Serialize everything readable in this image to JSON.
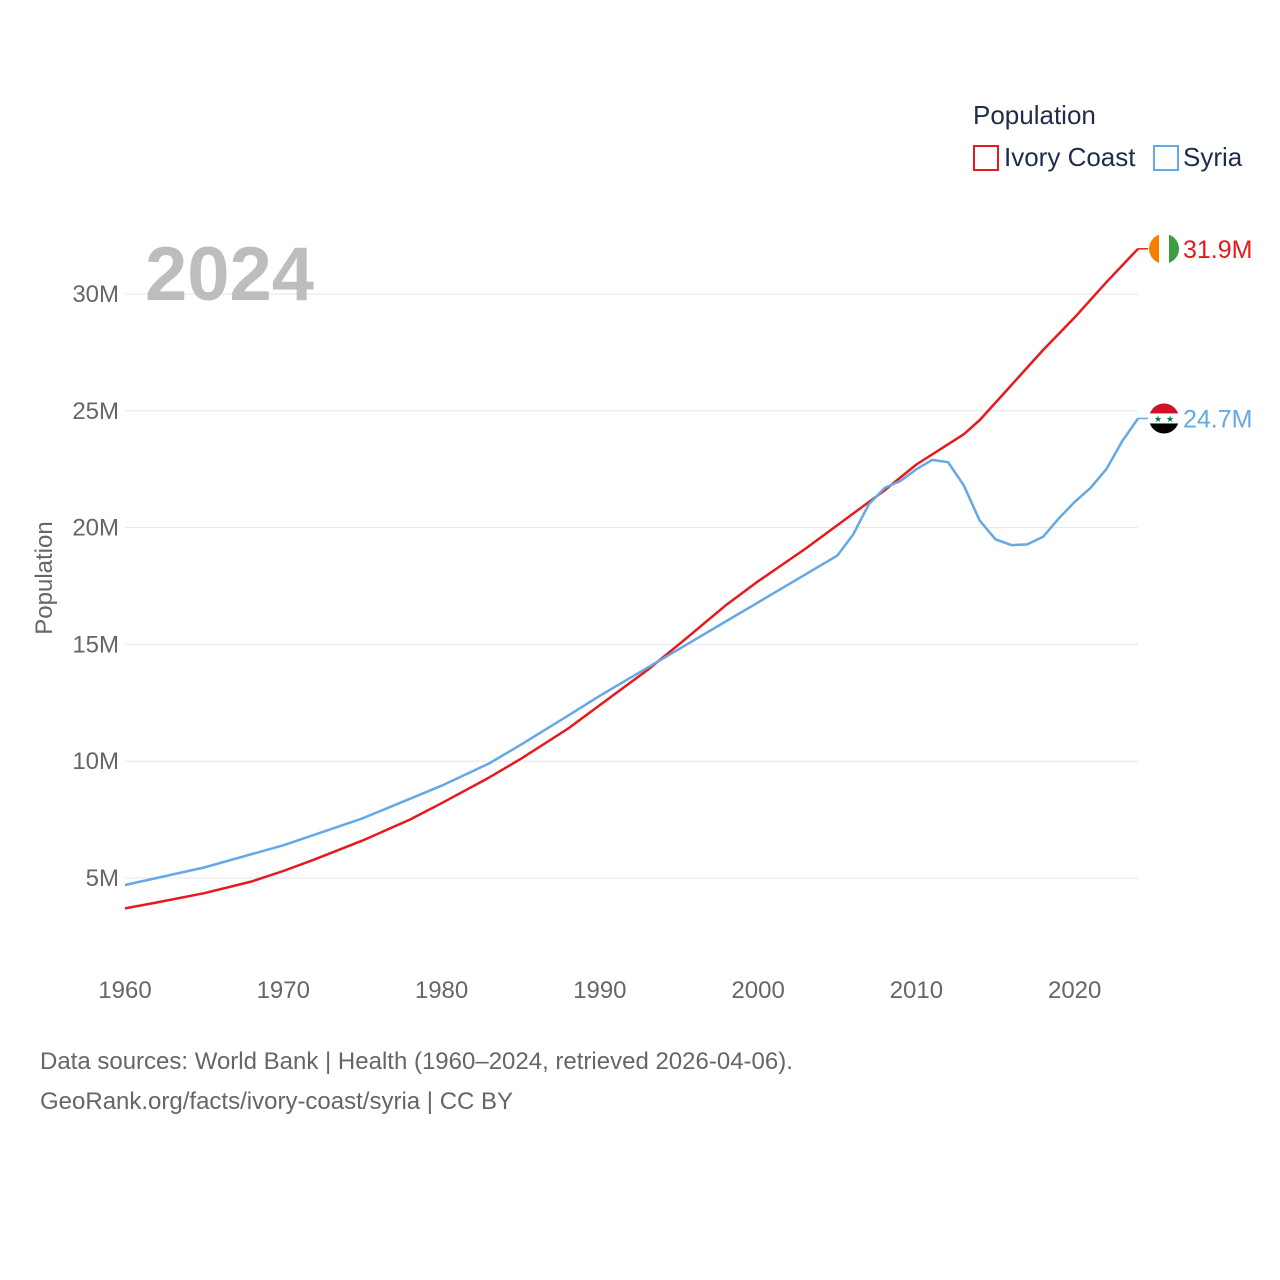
{
  "chart_data": {
    "type": "line",
    "title": "Population",
    "year_label": "2024",
    "ylabel": "Population",
    "xlim": [
      1960,
      2024
    ],
    "ylim": [
      3000000,
      33000000
    ],
    "x_ticks": [
      1960,
      1970,
      1980,
      1990,
      2000,
      2010,
      2020
    ],
    "y_ticks": [
      {
        "value": 5000000,
        "label": "5M"
      },
      {
        "value": 10000000,
        "label": "10M"
      },
      {
        "value": 15000000,
        "label": "15M"
      },
      {
        "value": 20000000,
        "label": "20M"
      },
      {
        "value": 25000000,
        "label": "25M"
      },
      {
        "value": 30000000,
        "label": "30M"
      }
    ],
    "legend": {
      "title": "Population",
      "position": "top-right"
    },
    "series": [
      {
        "name": "Ivory Coast",
        "color": "#e8191b",
        "end_label": "31.9M",
        "flag": "ivory-coast-flag",
        "points": [
          [
            1960,
            3700000
          ],
          [
            1962,
            3950000
          ],
          [
            1965,
            4350000
          ],
          [
            1968,
            4850000
          ],
          [
            1970,
            5300000
          ],
          [
            1972,
            5800000
          ],
          [
            1975,
            6600000
          ],
          [
            1978,
            7500000
          ],
          [
            1980,
            8200000
          ],
          [
            1983,
            9300000
          ],
          [
            1985,
            10100000
          ],
          [
            1988,
            11400000
          ],
          [
            1990,
            12400000
          ],
          [
            1993,
            13900000
          ],
          [
            1995,
            15000000
          ],
          [
            1998,
            16700000
          ],
          [
            2000,
            17700000
          ],
          [
            2003,
            19100000
          ],
          [
            2005,
            20100000
          ],
          [
            2008,
            21600000
          ],
          [
            2010,
            22700000
          ],
          [
            2013,
            24000000
          ],
          [
            2014,
            24600000
          ],
          [
            2016,
            26100000
          ],
          [
            2018,
            27600000
          ],
          [
            2020,
            29000000
          ],
          [
            2022,
            30500000
          ],
          [
            2024,
            31934000
          ]
        ]
      },
      {
        "name": "Syria",
        "color": "#64a8e6",
        "end_label": "24.7M",
        "flag": "syria-flag",
        "points": [
          [
            1960,
            4700000
          ],
          [
            1965,
            5450000
          ],
          [
            1970,
            6400000
          ],
          [
            1975,
            7550000
          ],
          [
            1980,
            8950000
          ],
          [
            1983,
            9900000
          ],
          [
            1985,
            10700000
          ],
          [
            1988,
            11950000
          ],
          [
            1990,
            12800000
          ],
          [
            1993,
            14000000
          ],
          [
            1995,
            14800000
          ],
          [
            1998,
            16000000
          ],
          [
            2000,
            16800000
          ],
          [
            2003,
            18000000
          ],
          [
            2005,
            18800000
          ],
          [
            2006,
            19700000
          ],
          [
            2007,
            21000000
          ],
          [
            2008,
            21700000
          ],
          [
            2009,
            22000000
          ],
          [
            2010,
            22500000
          ],
          [
            2011,
            22900000
          ],
          [
            2012,
            22800000
          ],
          [
            2013,
            21800000
          ],
          [
            2014,
            20300000
          ],
          [
            2015,
            19500000
          ],
          [
            2016,
            19250000
          ],
          [
            2017,
            19280000
          ],
          [
            2018,
            19600000
          ],
          [
            2019,
            20400000
          ],
          [
            2020,
            21100000
          ],
          [
            2021,
            21700000
          ],
          [
            2022,
            22500000
          ],
          [
            2023,
            23700000
          ],
          [
            2024,
            24672000
          ]
        ]
      }
    ]
  },
  "footer": {
    "line1": "Data sources: World Bank | Health (1960–2024, retrieved 2026-04-06).",
    "line2": "GeoRank.org/facts/ivory-coast/syria | CC BY"
  }
}
